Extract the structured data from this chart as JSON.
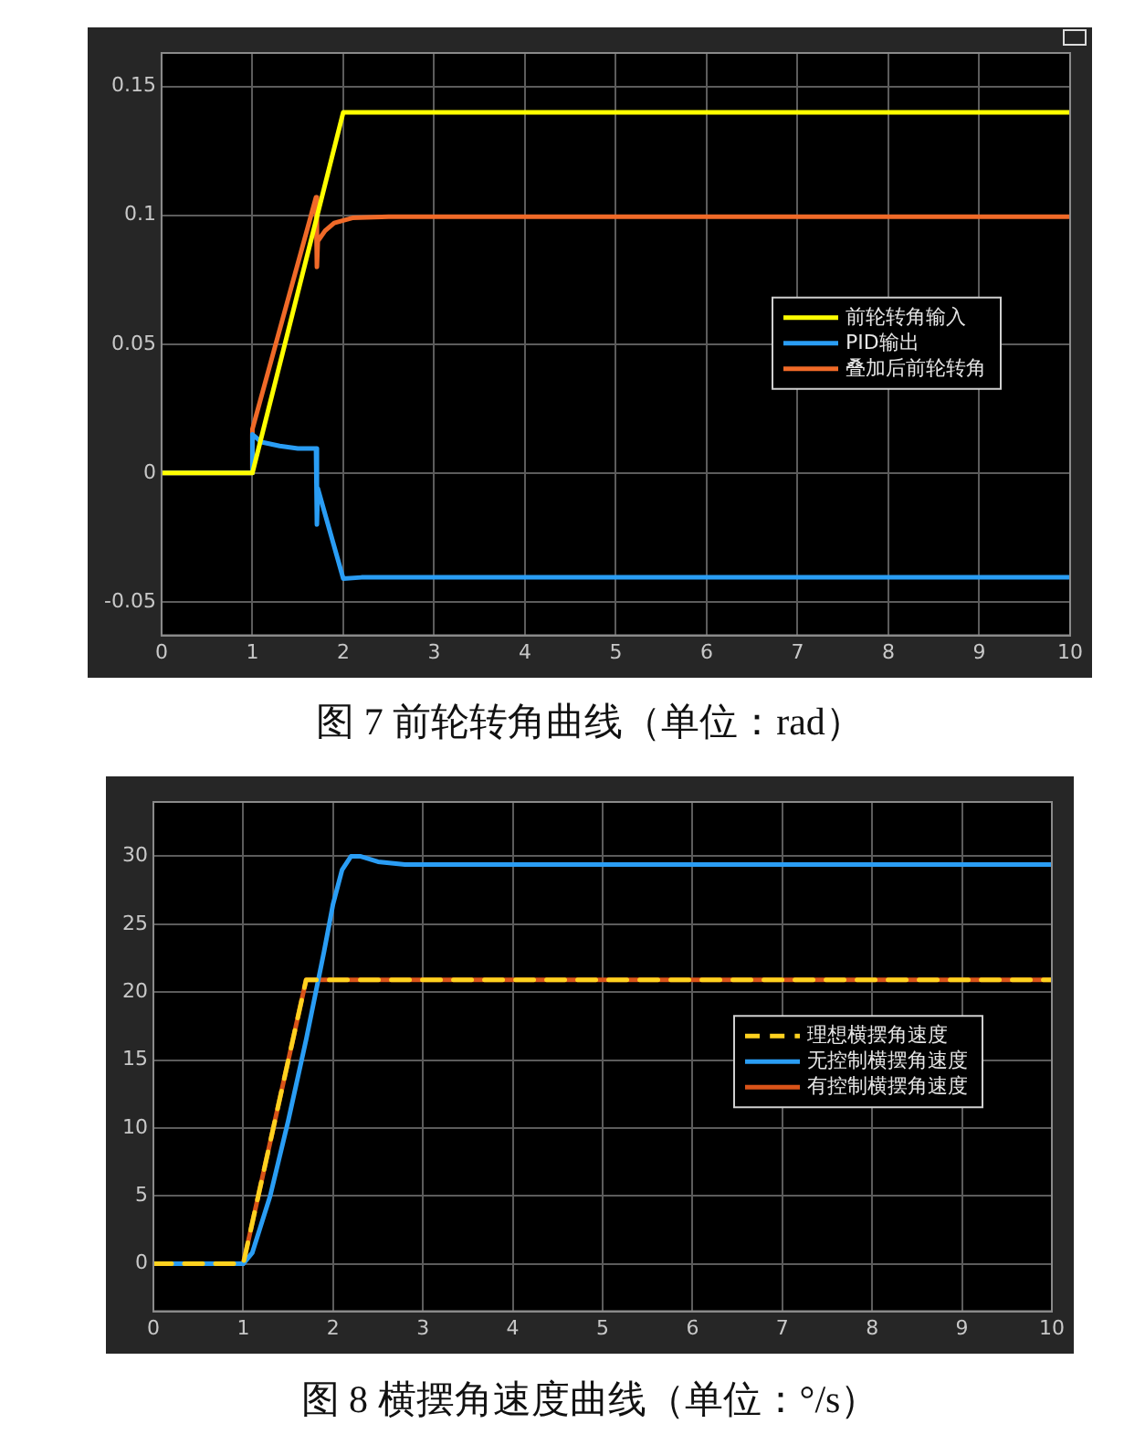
{
  "chart_data": [
    {
      "type": "line",
      "title": "图 7  前轮转角曲线（单位：rad）",
      "xlim": [
        0,
        10
      ],
      "xticks": [
        0,
        1,
        2,
        3,
        4,
        5,
        6,
        7,
        8,
        9,
        10
      ],
      "ylim": [
        -0.063,
        0.163
      ],
      "yticks": [
        -0.05,
        0,
        0.05,
        0.1,
        0.15
      ],
      "grid": true,
      "legend": "right",
      "line_style": "solid",
      "marker": "none",
      "series": [
        {
          "name": "前轮转角输入",
          "color": "#ffff00",
          "x": [
            0,
            1,
            2,
            10
          ],
          "values": [
            0,
            0,
            0.14,
            0.14
          ]
        },
        {
          "name": "PID输出",
          "color": "#2a9df4",
          "x": [
            0,
            1,
            1,
            1.1,
            1.3,
            1.5,
            1.7,
            1.71,
            1.72,
            2.0,
            2.2,
            10
          ],
          "values": [
            0,
            0,
            0.015,
            0.012,
            0.0105,
            0.0095,
            0.0095,
            -0.02,
            -0.006,
            -0.041,
            -0.0405,
            -0.0405
          ]
        },
        {
          "name": "叠加后前轮转角",
          "color": "#f06a28",
          "x": [
            0,
            1,
            1,
            1.7,
            1.71,
            1.72,
            1.8,
            1.9,
            2.1,
            2.5,
            10
          ],
          "values": [
            0,
            0,
            0.017,
            0.107,
            0.08,
            0.09,
            0.094,
            0.097,
            0.099,
            0.0995,
            0.0995
          ]
        }
      ]
    },
    {
      "type": "line",
      "title": "图 8  横摆角速度曲线（单位：°/s）",
      "xlim": [
        0,
        10
      ],
      "xticks": [
        0,
        1,
        2,
        3,
        4,
        5,
        6,
        7,
        8,
        9,
        10
      ],
      "ylim": [
        -3.5,
        34
      ],
      "yticks": [
        0,
        5,
        10,
        15,
        20,
        25,
        30
      ],
      "grid": true,
      "legend": "right",
      "marker": "none",
      "series": [
        {
          "name": "理想横摆角速度",
          "color": "#ffd21f",
          "line_style": "dashed",
          "x": [
            0,
            1,
            1.7,
            10
          ],
          "values": [
            0,
            0,
            20.9,
            20.9
          ]
        },
        {
          "name": "无控制横摆角速度",
          "color": "#2a9df4",
          "line_style": "solid",
          "x": [
            0,
            1,
            1.1,
            1.3,
            1.5,
            1.7,
            1.9,
            2.0,
            2.1,
            2.2,
            2.3,
            2.5,
            2.8,
            10
          ],
          "values": [
            0,
            0,
            0.8,
            5,
            10.5,
            16.5,
            23,
            26.5,
            29,
            30,
            30,
            29.6,
            29.4,
            29.4
          ]
        },
        {
          "name": "有控制横摆角速度",
          "color": "#d95319",
          "line_style": "solid",
          "x": [
            0,
            1,
            1.7,
            10
          ],
          "values": [
            0,
            0,
            20.9,
            20.9
          ]
        }
      ]
    }
  ]
}
